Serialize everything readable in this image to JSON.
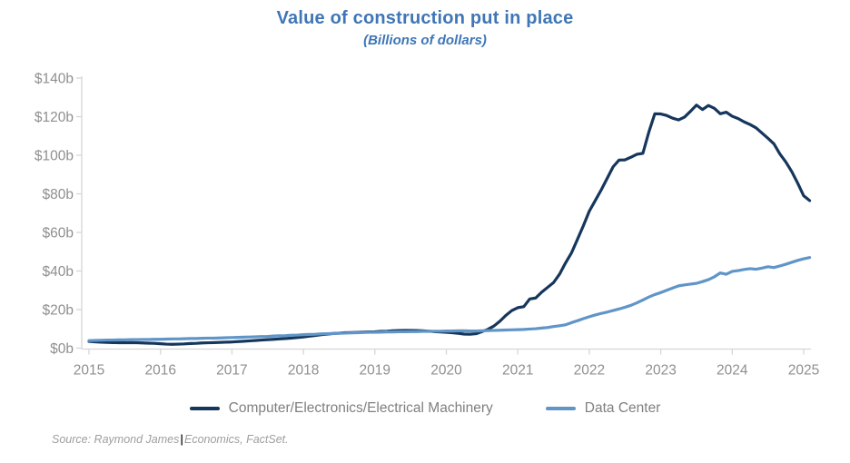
{
  "header": {
    "title": "Value of construction put in place",
    "subtitle": "(Billions of dollars)"
  },
  "source": {
    "prefix": "Source: Raymond James",
    "divider": "|",
    "suffix": "Economics, FactSet."
  },
  "colors": {
    "title_blue": "#3f76b6",
    "series1_navy": "#16365c",
    "series2_blue": "#6095c8",
    "axis_text_gray": "#8f8f8f",
    "axis_line_gray": "#d6d6d6",
    "legend_text_gray": "#7f7f7f",
    "source_text_gray": "#9e9e9e"
  },
  "chart_data": {
    "type": "line",
    "title": "Value of construction put in place",
    "subtitle": "(Billions of dollars)",
    "x_unit": "month",
    "x_range": [
      "2015-01",
      "2025-02"
    ],
    "x_tick_labels": [
      "2015",
      "2016",
      "2017",
      "2018",
      "2019",
      "2020",
      "2021",
      "2022",
      "2023",
      "2024",
      "2025"
    ],
    "y_tick_labels": [
      "$0b",
      "$20b",
      "$40b",
      "$60b",
      "$80b",
      "$100b",
      "$120b",
      "$140b"
    ],
    "ylim": [
      0,
      140
    ],
    "y_tick_step": 20,
    "grid": false,
    "legend_position": "bottom",
    "series": [
      {
        "name": "Computer/Electronics/Electrical Machinery",
        "color": "#16365c",
        "values": [
          3.5,
          3.3,
          3.1,
          3.0,
          2.9,
          2.8,
          2.8,
          2.9,
          2.8,
          2.7,
          2.6,
          2.5,
          2.3,
          2.1,
          2.0,
          2.1,
          2.2,
          2.4,
          2.5,
          2.7,
          2.8,
          2.9,
          3.0,
          3.1,
          3.2,
          3.4,
          3.6,
          3.8,
          4.0,
          4.2,
          4.4,
          4.6,
          4.8,
          5.0,
          5.2,
          5.5,
          5.8,
          6.2,
          6.6,
          7.0,
          7.3,
          7.6,
          7.8,
          8.0,
          8.1,
          8.2,
          8.3,
          8.4,
          8.5,
          8.7,
          8.8,
          9.0,
          9.1,
          9.2,
          9.2,
          9.1,
          9.0,
          8.8,
          8.6,
          8.4,
          8.2,
          8.0,
          7.7,
          7.3,
          7.2,
          7.5,
          8.6,
          9.8,
          11.5,
          14.0,
          17.0,
          19.5,
          21.0,
          21.5,
          25.5,
          26.0,
          29.0,
          31.5,
          34.0,
          38.3,
          44.1,
          49.3,
          56.3,
          63.4,
          71.0,
          76.5,
          82.0,
          88.0,
          94.0,
          97.5,
          97.6,
          99.0,
          100.5,
          101.0,
          112.0,
          121.5,
          121.4,
          120.6,
          119.2,
          118.3,
          119.8,
          122.8,
          126.0,
          123.7,
          125.8,
          124.3,
          121.5,
          122.3,
          120.2,
          119.0,
          117.3,
          115.9,
          114.2,
          111.5,
          108.8,
          105.9,
          100.7,
          96.5,
          91.5,
          85.5,
          79.0,
          76.5
        ]
      },
      {
        "name": "Data Center",
        "color": "#6095c8",
        "values": [
          3.9,
          4.0,
          4.1,
          4.2,
          4.2,
          4.3,
          4.3,
          4.4,
          4.4,
          4.5,
          4.5,
          4.6,
          4.6,
          4.7,
          4.8,
          4.8,
          4.9,
          5.0,
          5.0,
          5.1,
          5.2,
          5.2,
          5.3,
          5.4,
          5.5,
          5.6,
          5.7,
          5.8,
          5.9,
          6.0,
          6.1,
          6.3,
          6.4,
          6.5,
          6.7,
          6.8,
          7.0,
          7.1,
          7.2,
          7.4,
          7.5,
          7.6,
          7.7,
          7.8,
          7.9,
          8.0,
          8.1,
          8.2,
          8.2,
          8.3,
          8.4,
          8.4,
          8.5,
          8.5,
          8.6,
          8.6,
          8.7,
          8.7,
          8.8,
          8.8,
          8.9,
          8.9,
          9.0,
          9.0,
          8.9,
          8.9,
          9.0,
          9.1,
          9.2,
          9.3,
          9.4,
          9.5,
          9.6,
          9.7,
          9.9,
          10.1,
          10.4,
          10.7,
          11.2,
          11.6,
          12.1,
          13.2,
          14.2,
          15.3,
          16.3,
          17.2,
          18.0,
          18.7,
          19.5,
          20.3,
          21.2,
          22.2,
          23.5,
          25.0,
          26.5,
          27.8,
          28.8,
          30.0,
          31.2,
          32.3,
          32.8,
          33.2,
          33.6,
          34.5,
          35.5,
          37.0,
          39.0,
          38.3,
          39.8,
          40.2,
          40.8,
          41.2,
          40.9,
          41.5,
          42.2,
          41.8,
          42.6,
          43.5,
          44.5,
          45.5,
          46.3,
          47.0
        ]
      }
    ]
  }
}
